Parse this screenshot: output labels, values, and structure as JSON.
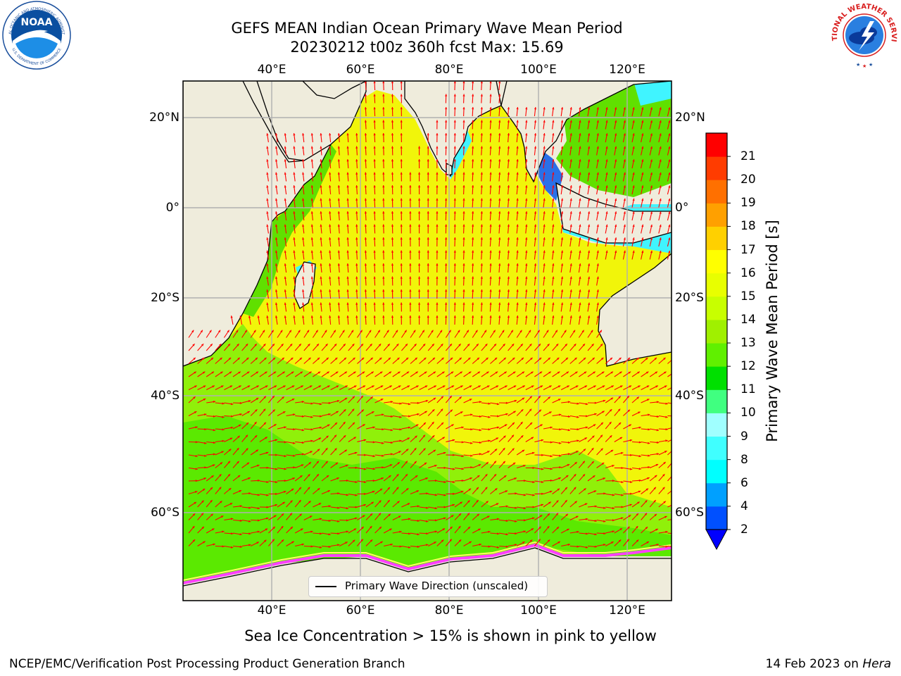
{
  "title": {
    "line1": "GEFS MEAN Indian Ocean Primary Wave Mean Period",
    "line2": "20230212 t00z 360h fcst   Max: 15.69"
  },
  "map": {
    "top_lon_labels": [
      "40°E",
      "60°E",
      "80°E",
      "100°E",
      "120°E"
    ],
    "bottom_lon_labels": [
      "40°E",
      "60°E",
      "80°E",
      "100°E",
      "120°E"
    ],
    "lat_labels_left": [
      "20°N",
      "0°",
      "20°S",
      "40°S",
      "60°S"
    ],
    "lat_labels_right": [
      "20°N",
      "0°",
      "20°S",
      "40°S",
      "60°S"
    ],
    "colors": {
      "land": "#efecdc",
      "ocean_main": "#f1f50a",
      "ocean_south": "#90f00a",
      "arrow": "#ff0000"
    }
  },
  "legend": {
    "label": "Primary Wave Direction (unscaled)"
  },
  "colorbar": {
    "title": "Primary Wave Mean Period [s]",
    "tick_labels": [
      "2",
      "4",
      "6",
      "8",
      "9",
      "10",
      "11",
      "12",
      "13",
      "14",
      "15",
      "16",
      "17",
      "18",
      "19",
      "20",
      "21"
    ],
    "bin_colors": [
      "#0050ff",
      "#00a0ff",
      "#00ffff",
      "#40ffff",
      "#a0ffff",
      "#40ff80",
      "#00e000",
      "#60f000",
      "#a0f000",
      "#c8ff00",
      "#e8ff00",
      "#ffff00",
      "#ffd000",
      "#ffa000",
      "#ff7000",
      "#ff3c00",
      "#ff0000"
    ],
    "extend_color": "#0000ff"
  },
  "subtitle": "Sea Ice Concentration > 15% is shown in pink to yellow",
  "footer": {
    "left": "NCEP/EMC/Verification Post Processing Product Generation Branch",
    "right_prefix": "14 Feb 2023 on ",
    "right_host": "Hera"
  },
  "logos": {
    "noaa_text": "NOAA",
    "noaa_ring_text": "NATIONAL OCEANIC AND ATMOSPHERIC ADMINISTRATION",
    "noaa_ring_bottom": "U.S. DEPARTMENT OF COMMERCE",
    "nws_text": "NATIONAL WEATHER SERVICE"
  }
}
